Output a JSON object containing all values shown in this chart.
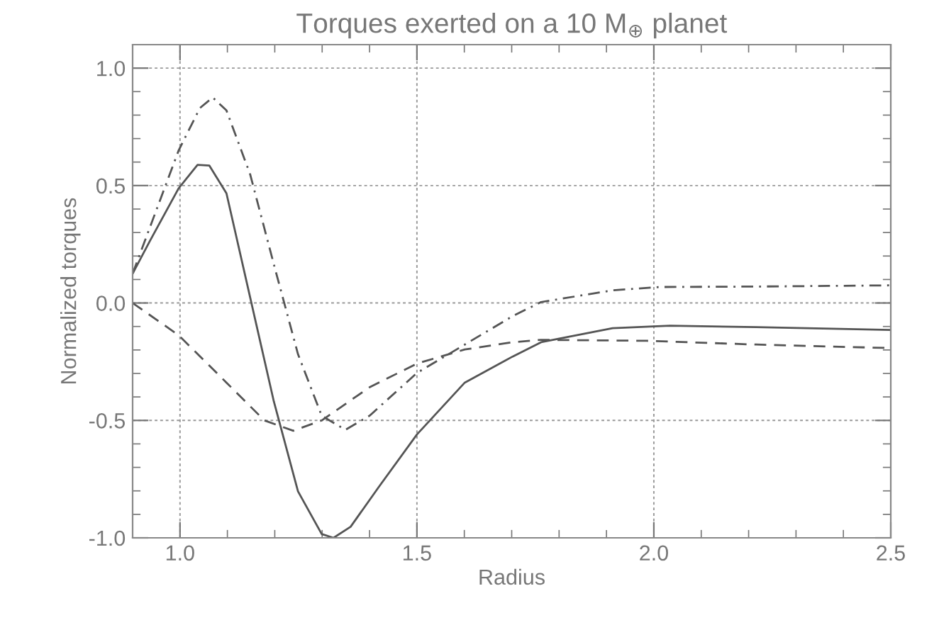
{
  "chart_data": {
    "type": "line",
    "title": "Torques exerted on a 10 M$_{⊕}$ planet",
    "xlabel": "Radius",
    "ylabel": "Normalized torques",
    "xlim": [
      0.9,
      2.5
    ],
    "ylim": [
      -1.0,
      1.1
    ],
    "xticks": [
      {
        "value": 1,
        "label": "1.0"
      },
      {
        "value": 1.5,
        "label": "1.5"
      },
      {
        "value": 2,
        "label": "2.0"
      },
      {
        "value": 2.5,
        "label": "2.5"
      }
    ],
    "yticks": [
      {
        "value": -1,
        "label": "-1.0"
      },
      {
        "value": -0.5,
        "label": "-0.5"
      },
      {
        "value": 0,
        "label": "0.0"
      },
      {
        "value": 0.5,
        "label": "0.5"
      },
      {
        "value": 1,
        "label": "1.0"
      }
    ],
    "grid": true,
    "marker": "none",
    "series": [
      {
        "color": "#555555",
        "line_style": "solid",
        "x": [
          0.9,
          0.937,
          0.997,
          1.037,
          1.062,
          1.098,
          1.148,
          1.198,
          1.249,
          1.299,
          1.324,
          1.36,
          1.42,
          1.5,
          1.601,
          1.702,
          1.762,
          1.913,
          2.034,
          2.216,
          2.5
        ],
        "values": [
          0.125,
          0.266,
          0.488,
          0.588,
          0.585,
          0.467,
          0.024,
          -0.419,
          -0.802,
          -0.984,
          -1.0,
          -0.953,
          -0.782,
          -0.56,
          -0.339,
          -0.228,
          -0.167,
          -0.107,
          -0.097,
          -0.103,
          -0.115
        ]
      },
      {
        "color": "#555555",
        "line_style": "dashed",
        "x": [
          0.9,
          0.997,
          1.098,
          1.178,
          1.239,
          1.299,
          1.4,
          1.5,
          1.601,
          1.702,
          1.762,
          1.985,
          2.216,
          2.5
        ],
        "values": [
          0.0,
          -0.137,
          -0.339,
          -0.5,
          -0.544,
          -0.5,
          -0.359,
          -0.258,
          -0.198,
          -0.167,
          -0.157,
          -0.161,
          -0.177,
          -0.192
        ]
      },
      {
        "color": "#555555",
        "line_style": "dashdot",
        "x": [
          0.9,
          0.997,
          1.042,
          1.069,
          1.098,
          1.148,
          1.198,
          1.249,
          1.299,
          1.349,
          1.4,
          1.5,
          1.601,
          1.702,
          1.762,
          1.913,
          2.014,
          2.216,
          2.5
        ],
        "values": [
          0.125,
          0.649,
          0.83,
          0.875,
          0.82,
          0.548,
          0.165,
          -0.218,
          -0.48,
          -0.54,
          -0.48,
          -0.298,
          -0.177,
          -0.056,
          0.004,
          0.054,
          0.068,
          0.07,
          0.075
        ]
      }
    ]
  }
}
